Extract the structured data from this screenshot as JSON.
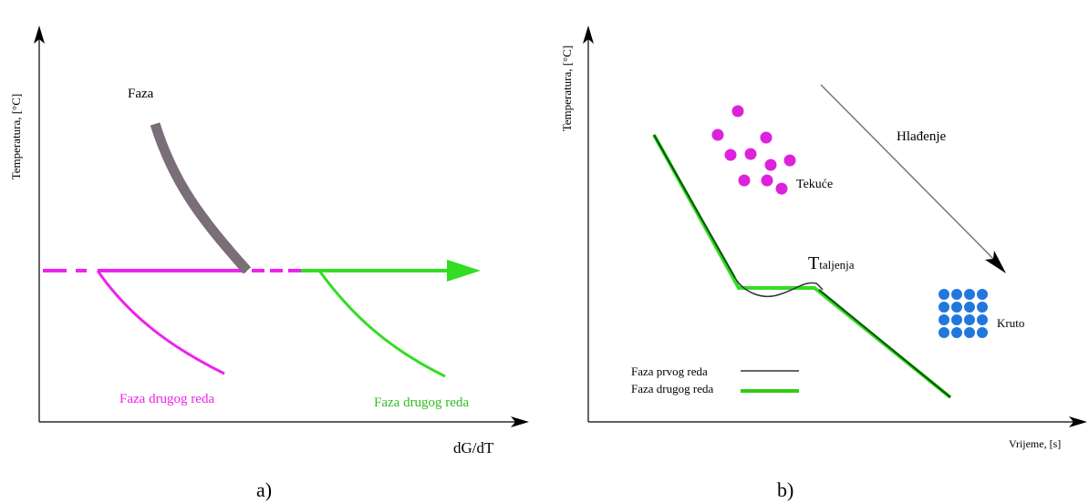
{
  "panel_a": {
    "y_axis_label": "Temperatura, [°C]",
    "x_axis_label": "dG/dT",
    "curve_label": "Faza",
    "magenta_label": "Faza drugog reda",
    "green_label": "Faza drugog reda",
    "caption": "a)"
  },
  "panel_b": {
    "y_axis_label": "Temperatura, [°C]",
    "x_axis_label": "Vrijeme, [s]",
    "cooling_label": "Hlađenje",
    "liquid_label": "Tekuće",
    "solid_label": "Kruto",
    "melting_label_main": "T",
    "melting_label_sub": "taljenja",
    "legend": [
      {
        "label": "Faza prvog reda",
        "color": "#333333"
      },
      {
        "label": "Faza drugog reda",
        "color": "#33cc11"
      }
    ],
    "caption": "b)"
  },
  "colors": {
    "magenta": "#ee22ee",
    "green": "#33dd22",
    "gray_curve": "#7a6e78",
    "dark_green": "#0a5a0a",
    "liquid": "#dd22dd",
    "solid": "#2277dd"
  }
}
